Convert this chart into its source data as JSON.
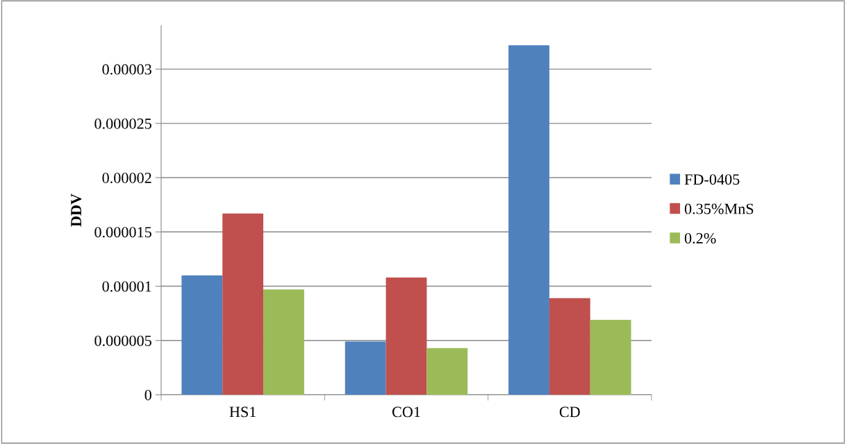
{
  "chart_data": {
    "type": "bar",
    "ylabel": "DDV",
    "categories": [
      "HS1",
      "CO1",
      "CD"
    ],
    "series": [
      {
        "name": "FD-0405",
        "color": "#4f81bd",
        "values": [
          1.1e-05,
          4.9e-06,
          3.22e-05
        ]
      },
      {
        "name": "0.35%MnS",
        "color": "#c0504d",
        "values": [
          1.67e-05,
          1.08e-05,
          8.9e-06
        ]
      },
      {
        "name": "0.2%",
        "color": "#9bbb59",
        "values": [
          9.7e-06,
          4.3e-06,
          6.9e-06
        ]
      }
    ],
    "ylim": [
      0,
      3.4e-05
    ],
    "yticks": [
      0,
      {
        "value": 5e-06,
        "label": "0.000005"
      },
      {
        "value": 1e-05,
        "label": "0.00001"
      },
      {
        "value": 1.5e-05,
        "label": "0.000015"
      },
      {
        "value": 2e-05,
        "label": "0.00002"
      },
      {
        "value": 2.5e-05,
        "label": "0.000025"
      },
      {
        "value": 3e-05,
        "label": "0.00003"
      }
    ],
    "grid": "y",
    "legend": "right"
  }
}
